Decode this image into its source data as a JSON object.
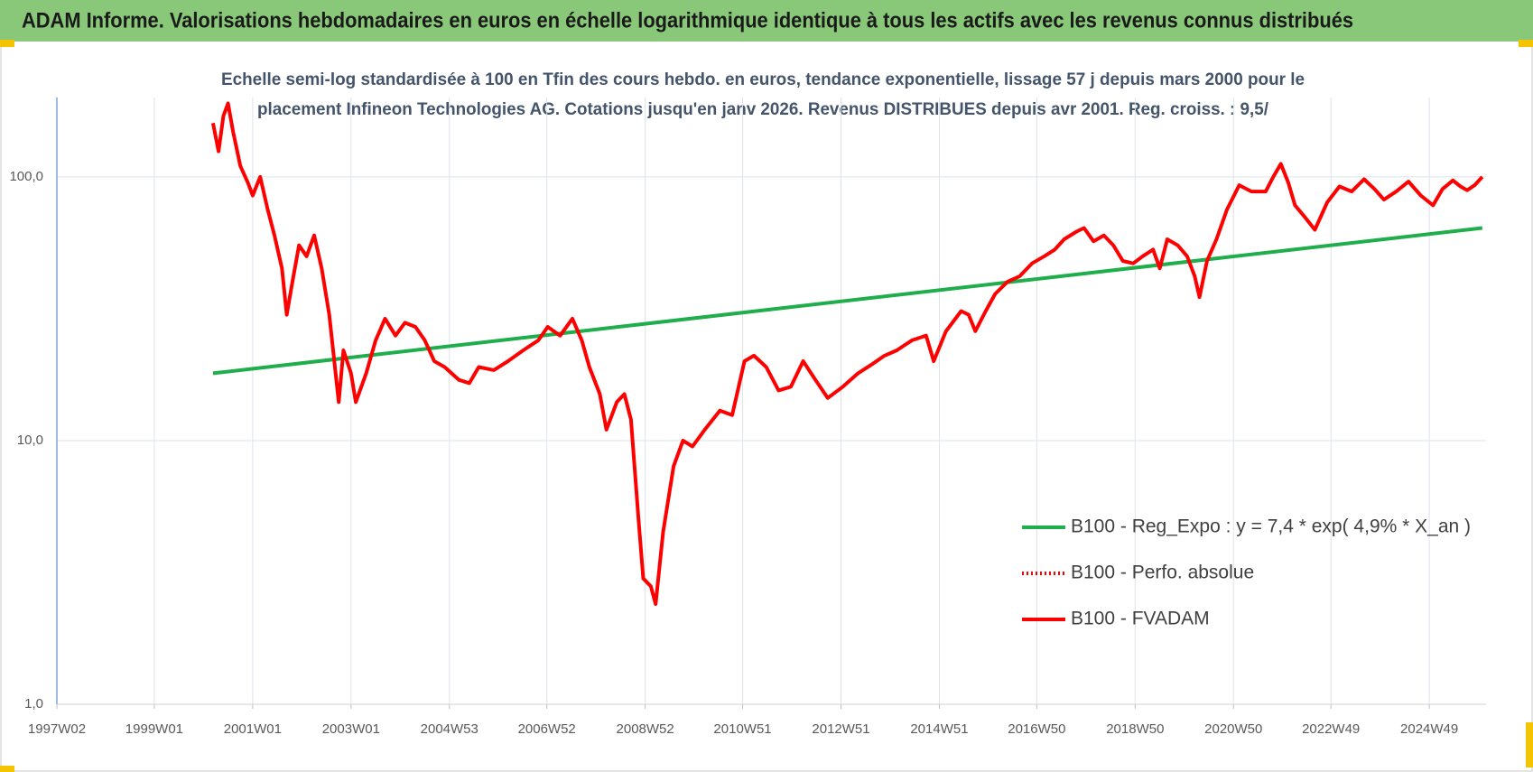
{
  "chart_data": {
    "type": "line",
    "title": "ADAM Informe. Valorisations hebdomadaires en euros en échelle logarithmique identique à tous les actifs avec les revenus connus distribués",
    "subtitle": [
      "Echelle semi-log standardisée à 100 en Tfin des cours hebdo. en euros, tendance exponentielle, lissage 57 j depuis mars 2000 pour le",
      "placement Infineon Technologies AG. Cotations jusqu'en janv 2026. Revenus DISTRIBUES depuis avr 2001. Reg. croiss. : 9,5/"
    ],
    "log_scale": true,
    "grid": true,
    "legend": "lower right",
    "xlim": [
      "1997W02",
      "2026W05"
    ],
    "xticks": [
      "1997W02",
      "1999W01",
      "2001W01",
      "2003W01",
      "2004W53",
      "2006W52",
      "2008W52",
      "2010W51",
      "2012W51",
      "2014W51",
      "2016W50",
      "2018W50",
      "2020W50",
      "2022W49",
      "2024W49"
    ],
    "ylim": [
      1,
      200
    ],
    "yticks": [
      {
        "value": 1,
        "label": "1,0"
      },
      {
        "value": 10,
        "label": "10,0"
      },
      {
        "value": 100,
        "label": "100,0"
      }
    ],
    "series": [
      {
        "name": "B100 - Reg_Expo : y = 7,4 * exp( 4,9% *  X_an )",
        "color": "#1fae4b",
        "dash": "solid",
        "x": [
          "2000W11",
          "2026W01"
        ],
        "values": [
          18,
          64
        ]
      },
      {
        "name": "B100 - Perfo. absolue",
        "color": "#ff0000",
        "dash": "dotted",
        "x": [],
        "values": []
      },
      {
        "name": "B100 - FVADAM",
        "color": "#ff0000",
        "dash": "solid",
        "x": [
          "2000W11",
          "2000W17",
          "2000W22",
          "2000W27",
          "2000W32",
          "2000W40",
          "2000W48",
          "2001W01",
          "2001W09",
          "2001W17",
          "2001W24",
          "2001W32",
          "2001W37",
          "2001W43",
          "2001W50",
          "2002W06",
          "2002W14",
          "2002W22",
          "2002W30",
          "2002W40",
          "2002W45",
          "2003W01",
          "2003W06",
          "2003W17",
          "2003W27",
          "2003W37",
          "2003W48",
          "2004W06",
          "2004W17",
          "2004W27",
          "2004W37",
          "2004W48",
          "2005W11",
          "2005W22",
          "2005W32",
          "2005W48",
          "2006W11",
          "2006W27",
          "2006W43",
          "2007W01",
          "2007W14",
          "2007W27",
          "2007W37",
          "2007W45",
          "2008W04",
          "2008W11",
          "2008W22",
          "2008W30",
          "2008W37",
          "2008W45",
          "2008W50",
          "2009W06",
          "2009W11",
          "2009W19",
          "2009W30",
          "2009W40",
          "2009W50",
          "2010W11",
          "2010W27",
          "2010W40",
          "2011W01",
          "2011W11",
          "2011W24",
          "2011W37",
          "2011W50",
          "2012W11",
          "2012W24",
          "2012W37",
          "2013W01",
          "2013W17",
          "2013W32",
          "2013W45",
          "2014W06",
          "2014W22",
          "2014W37",
          "2014W45",
          "2015W06",
          "2015W22",
          "2015W30",
          "2015W37",
          "2015W48",
          "2016W06",
          "2016W19",
          "2016W32",
          "2016W45",
          "2017W06",
          "2017W17",
          "2017W27",
          "2017W40",
          "2017W48",
          "2018W06",
          "2018W17",
          "2018W27",
          "2018W37",
          "2018W48",
          "2019W06",
          "2019W17",
          "2019W24",
          "2019W32",
          "2019W43",
          "2020W01",
          "2020W09",
          "2020W14",
          "2020W22",
          "2020W32",
          "2020W43",
          "2021W04",
          "2021W17",
          "2021W32",
          "2021W40",
          "2021W48",
          "2022W04",
          "2022W11",
          "2022W22",
          "2022W32",
          "2022W45",
          "2023W06",
          "2023W19",
          "2023W32",
          "2023W43",
          "2024W01",
          "2024W14",
          "2024W27",
          "2024W40",
          "2025W01",
          "2025W11",
          "2025W22",
          "2025W30",
          "2025W37",
          "2025W45",
          "2026W01"
        ],
        "values": [
          160,
          125,
          170,
          190,
          150,
          110,
          95,
          85,
          100,
          75,
          60,
          45,
          30,
          40,
          55,
          50,
          60,
          45,
          30,
          14,
          22,
          18,
          14,
          18,
          24,
          29,
          25,
          28,
          27,
          24,
          20,
          19,
          17,
          16.5,
          19,
          18.5,
          20,
          22,
          24,
          27,
          25,
          29,
          24,
          19,
          15,
          11,
          14,
          15,
          12,
          5,
          3,
          2.8,
          2.4,
          4.5,
          8,
          10,
          9.5,
          11,
          13,
          12.5,
          20,
          21,
          19,
          15.5,
          16,
          20,
          17,
          14.5,
          16,
          18,
          19.5,
          21,
          22,
          24,
          25,
          20,
          26,
          31,
          30,
          26,
          31,
          36,
          40,
          42,
          47,
          50,
          53,
          58,
          62,
          64,
          57,
          60,
          55,
          48,
          47,
          50,
          53,
          45,
          58,
          55,
          50,
          42,
          35,
          48,
          58,
          75,
          93,
          88,
          88,
          100,
          112,
          95,
          78,
          70,
          63,
          80,
          92,
          88,
          98,
          90,
          82,
          88,
          96,
          85,
          78,
          90,
          97,
          92,
          89,
          93,
          100
        ]
      }
    ]
  }
}
